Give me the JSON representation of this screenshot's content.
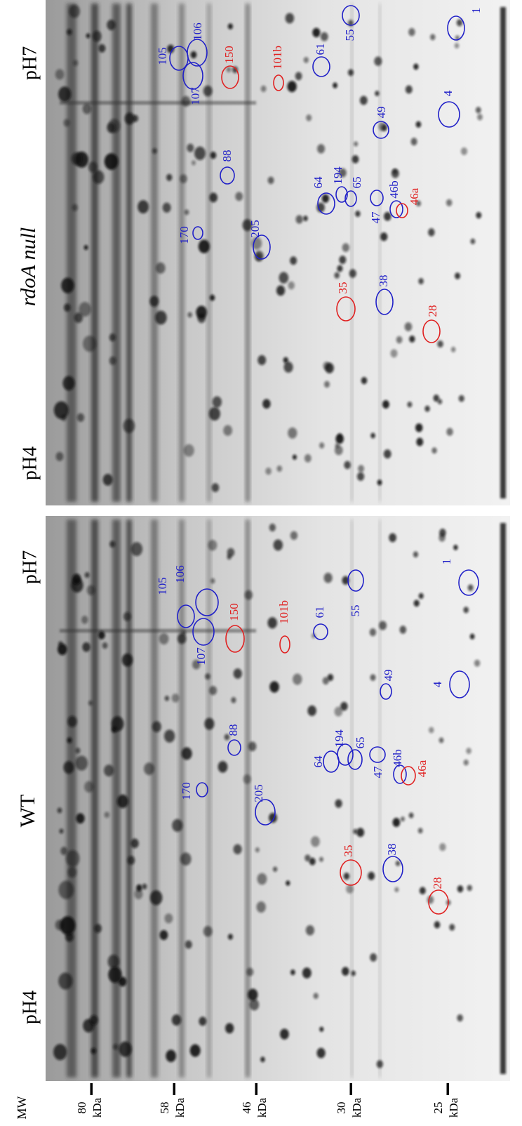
{
  "mw": {
    "label": "MW",
    "unit": "kDa",
    "markers": [
      80,
      58,
      46,
      30,
      25
    ]
  },
  "panels": [
    {
      "title": "rdoA null",
      "ph_left": "pH4",
      "ph_right": "pH7",
      "spots": [
        {
          "label": "1",
          "color": "#2020c8"
        },
        {
          "label": "55",
          "color": "#2020c8"
        },
        {
          "label": "61",
          "color": "#2020c8"
        },
        {
          "label": "105",
          "color": "#2020c8"
        },
        {
          "label": "106",
          "color": "#2020c8"
        },
        {
          "label": "107",
          "color": "#2020c8"
        },
        {
          "label": "150",
          "color": "#e02020"
        },
        {
          "label": "101b",
          "color": "#e02020"
        },
        {
          "label": "4",
          "color": "#2020c8"
        },
        {
          "label": "49",
          "color": "#2020c8"
        },
        {
          "label": "88",
          "color": "#2020c8"
        },
        {
          "label": "64",
          "color": "#2020c8"
        },
        {
          "label": "194",
          "color": "#2020c8"
        },
        {
          "label": "65",
          "color": "#2020c8"
        },
        {
          "label": "47",
          "color": "#2020c8"
        },
        {
          "label": "46b",
          "color": "#2020c8"
        },
        {
          "label": "46a",
          "color": "#e02020"
        },
        {
          "label": "170",
          "color": "#2020c8"
        },
        {
          "label": "205",
          "color": "#2020c8"
        },
        {
          "label": "35",
          "color": "#e02020"
        },
        {
          "label": "38",
          "color": "#2020c8"
        },
        {
          "label": "28",
          "color": "#e02020"
        }
      ]
    },
    {
      "title": "WT",
      "ph_left": "pH4",
      "ph_right": "pH7",
      "spots": [
        {
          "label": "1",
          "color": "#2020c8"
        },
        {
          "label": "55",
          "color": "#2020c8"
        },
        {
          "label": "61",
          "color": "#2020c8"
        },
        {
          "label": "105",
          "color": "#2020c8"
        },
        {
          "label": "106",
          "color": "#2020c8"
        },
        {
          "label": "107",
          "color": "#2020c8"
        },
        {
          "label": "150",
          "color": "#e02020"
        },
        {
          "label": "101b",
          "color": "#e02020"
        },
        {
          "label": "4",
          "color": "#2020c8"
        },
        {
          "label": "49",
          "color": "#2020c8"
        },
        {
          "label": "88",
          "color": "#2020c8"
        },
        {
          "label": "64",
          "color": "#2020c8"
        },
        {
          "label": "194",
          "color": "#2020c8"
        },
        {
          "label": "65",
          "color": "#2020c8"
        },
        {
          "label": "47",
          "color": "#2020c8"
        },
        {
          "label": "46b",
          "color": "#2020c8"
        },
        {
          "label": "46a",
          "color": "#e02020"
        },
        {
          "label": "170",
          "color": "#2020c8"
        },
        {
          "label": "205",
          "color": "#2020c8"
        },
        {
          "label": "35",
          "color": "#e02020"
        },
        {
          "label": "38",
          "color": "#2020c8"
        },
        {
          "label": "28",
          "color": "#e02020"
        }
      ]
    }
  ]
}
